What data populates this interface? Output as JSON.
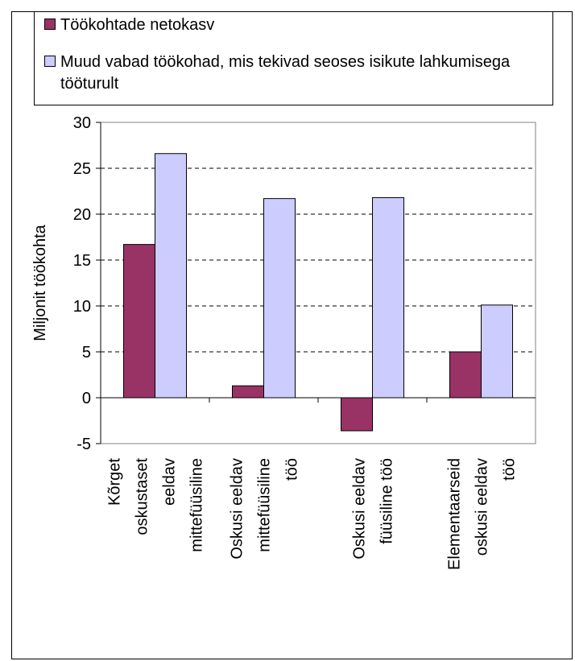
{
  "chart_data": {
    "type": "bar",
    "title": "",
    "xlabel": "",
    "ylabel": "Miljonit töökohta",
    "ylim": [
      -5,
      30
    ],
    "yticks": [
      -5,
      0,
      5,
      10,
      15,
      20,
      25,
      30
    ],
    "yticklabels": [
      "-5",
      "0",
      "5",
      "10",
      "15",
      "20",
      "25",
      "30"
    ],
    "grid": "horizontal dashed",
    "legend_position": "top",
    "categories": [
      [
        "Kõrget",
        "oskustaset",
        "eeldav",
        "mittefüüsiline"
      ],
      [
        "Oskusi eeldav",
        "mittefüüsiline",
        "töö"
      ],
      [
        "Oskusi eeldav",
        "füüsiline töö"
      ],
      [
        "Elementaarseid",
        "oskusi eeldav",
        "töö"
      ]
    ],
    "series": [
      {
        "name": "Töökohtade netokasv",
        "color": "#993366",
        "values": [
          16.7,
          1.3,
          -3.6,
          5.0
        ]
      },
      {
        "name": "Muud vabad töökohad, mis tekivad seoses isikute lahkumisega tööturult",
        "color": "#ccccff",
        "values": [
          26.6,
          21.7,
          21.8,
          10.1
        ]
      }
    ]
  }
}
